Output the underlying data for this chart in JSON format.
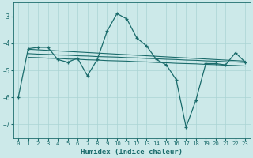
{
  "xlabel": "Humidex (Indice chaleur)",
  "ylabel": "",
  "background_color": "#cce9e9",
  "grid_color": "#aad4d4",
  "line_color": "#1a6b6b",
  "xlim": [
    -0.5,
    23.5
  ],
  "ylim": [
    -7.5,
    -2.5
  ],
  "yticks": [
    -7,
    -6,
    -5,
    -4,
    -3
  ],
  "xticks": [
    0,
    1,
    2,
    3,
    4,
    5,
    6,
    7,
    8,
    9,
    10,
    11,
    12,
    13,
    14,
    15,
    16,
    17,
    18,
    19,
    20,
    21,
    22,
    23
  ],
  "line1_x": [
    0,
    1,
    2,
    3,
    4,
    5,
    6,
    7,
    8,
    9,
    10,
    11,
    12,
    13,
    14,
    15,
    16,
    17,
    18,
    19,
    20,
    21,
    22,
    23
  ],
  "line1_y": [
    -6.0,
    -4.2,
    -4.15,
    -4.15,
    -4.6,
    -4.7,
    -4.55,
    -5.2,
    -4.6,
    -3.55,
    -2.9,
    -3.1,
    -3.8,
    -4.1,
    -4.6,
    -4.8,
    -5.35,
    -7.1,
    -6.1,
    -4.75,
    -4.75,
    -4.8,
    -4.35,
    -4.7
  ],
  "line2_x": [
    1,
    2,
    3,
    4,
    5,
    6,
    7,
    8,
    9,
    10,
    11,
    12,
    13,
    14,
    15,
    16,
    17,
    18,
    19,
    20,
    21,
    22,
    23
  ],
  "line2_y": [
    -4.22,
    -4.24,
    -4.26,
    -4.28,
    -4.3,
    -4.32,
    -4.34,
    -4.36,
    -4.38,
    -4.4,
    -4.42,
    -4.44,
    -4.46,
    -4.48,
    -4.5,
    -4.52,
    -4.54,
    -4.56,
    -4.58,
    -4.6,
    -4.62,
    -4.64,
    -4.66
  ],
  "line3_x": [
    1,
    2,
    3,
    4,
    5,
    6,
    7,
    8,
    9,
    10,
    11,
    12,
    13,
    14,
    15,
    16,
    17,
    18,
    19,
    20,
    21,
    22,
    23
  ],
  "line3_y": [
    -4.38,
    -4.4,
    -4.41,
    -4.43,
    -4.44,
    -4.46,
    -4.47,
    -4.49,
    -4.5,
    -4.51,
    -4.53,
    -4.54,
    -4.56,
    -4.57,
    -4.59,
    -4.6,
    -4.62,
    -4.63,
    -4.65,
    -4.66,
    -4.68,
    -4.69,
    -4.71
  ],
  "line4_x": [
    1,
    2,
    3,
    4,
    5,
    6,
    7,
    8,
    9,
    10,
    11,
    12,
    13,
    14,
    15,
    16,
    17,
    18,
    19,
    20,
    21,
    22,
    23
  ],
  "line4_y": [
    -4.52,
    -4.53,
    -4.55,
    -4.56,
    -4.58,
    -4.59,
    -4.61,
    -4.62,
    -4.64,
    -4.65,
    -4.66,
    -4.68,
    -4.69,
    -4.71,
    -4.72,
    -4.74,
    -4.75,
    -4.76,
    -4.78,
    -4.79,
    -4.81,
    -4.82,
    -4.84
  ]
}
